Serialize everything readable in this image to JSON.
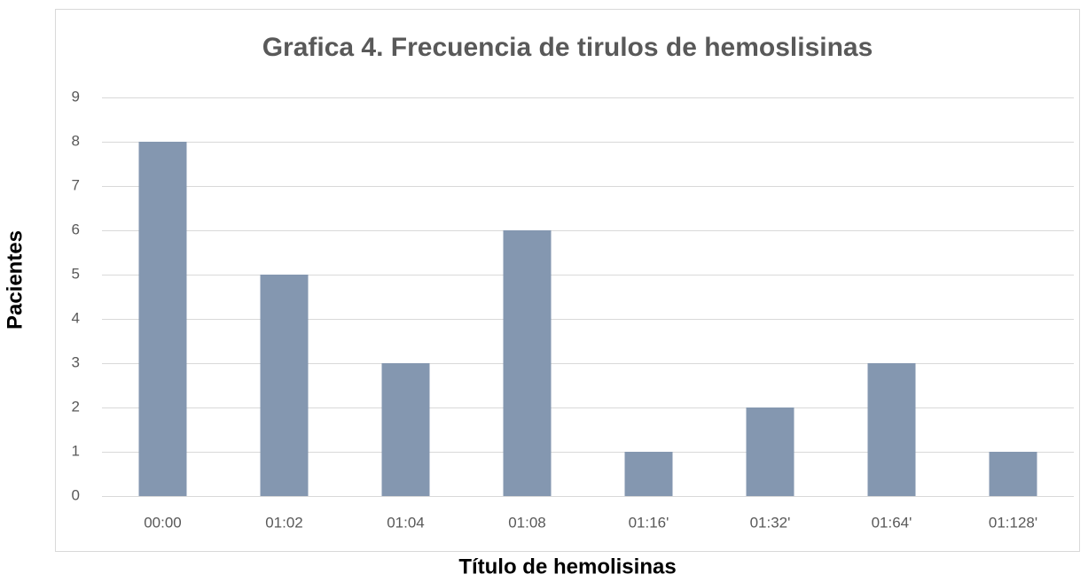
{
  "chart_data": {
    "type": "bar",
    "title": "Grafica 4. Frecuencia de tirulos de hemoslisinas",
    "x_label": "Título de hemolisinas",
    "y_label": "Pacientes",
    "categories": [
      "00:00",
      "01:02",
      "01:04",
      "01:08",
      "01:16'",
      "01:32'",
      "01:64'",
      "01:128'"
    ],
    "values": [
      8,
      5,
      3,
      6,
      1,
      2,
      3,
      1
    ],
    "color": "#8497b0",
    "ylim": [
      0,
      9
    ],
    "yticks": [
      0,
      1,
      2,
      3,
      4,
      5,
      6,
      7,
      8,
      9
    ],
    "grid": true
  }
}
